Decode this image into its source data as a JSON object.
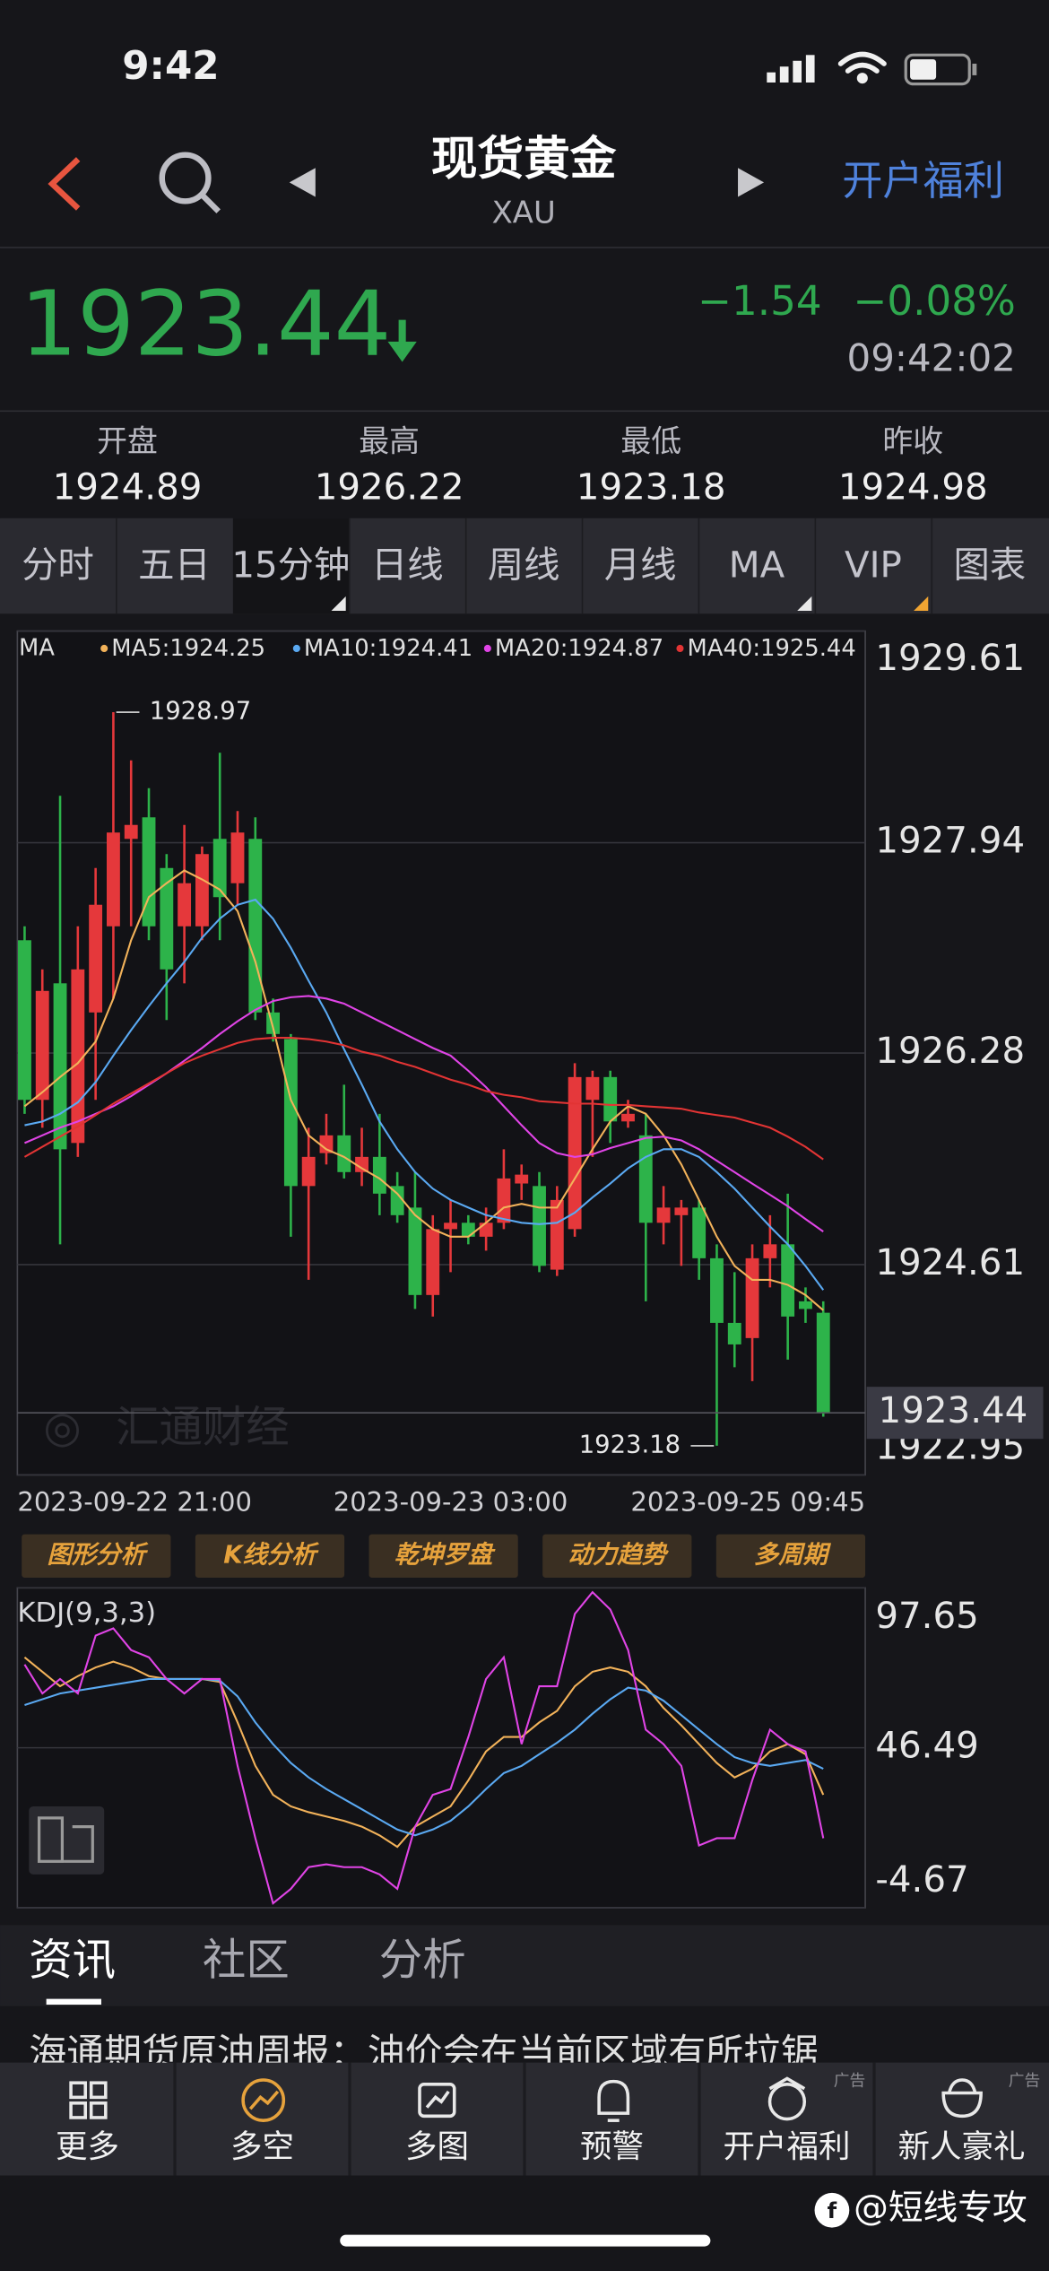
{
  "status_bar": {
    "time": "9:42"
  },
  "header": {
    "title": "现货黄金",
    "subtitle": "XAU",
    "action": "开户福利"
  },
  "quote": {
    "price": 1923.44,
    "change": "−1.54",
    "change_percent": "−0.08%",
    "time": "09:42:02"
  },
  "stats": [
    {
      "label": "开盘",
      "value": 1924.89
    },
    {
      "label": "最高",
      "value": 1926.22
    },
    {
      "label": "最低",
      "value": 1923.18
    },
    {
      "label": "昨收",
      "value": 1924.98
    }
  ],
  "tabs": [
    {
      "label": "分时"
    },
    {
      "label": "五日"
    },
    {
      "label": "15分钟",
      "active": true
    },
    {
      "label": "日线"
    },
    {
      "label": "周线"
    },
    {
      "label": "月线"
    },
    {
      "label": "MA"
    },
    {
      "label": "VIP"
    },
    {
      "label": "图表"
    }
  ],
  "chart": {
    "type": "candlestick",
    "indicator": "MA",
    "up_color": "#e5383b",
    "down_color": "#2db34a",
    "ylim": [
      1922.95,
      1929.61
    ],
    "yticks": [
      1929.61,
      1927.94,
      1926.28,
      1924.61,
      1922.95
    ],
    "categories": [
      "2023-09-22 21:00",
      null,
      null,
      null,
      null,
      null,
      null,
      null,
      null,
      null,
      null,
      null,
      null,
      null,
      null,
      null,
      null,
      null,
      null,
      null,
      null,
      null,
      null,
      null,
      "2023-09-23 03:00",
      null,
      null,
      null,
      null,
      null,
      null,
      null,
      null,
      null,
      null,
      null,
      null,
      null,
      null,
      null,
      null,
      null,
      null,
      null,
      null,
      "2023-09-25 09:45"
    ],
    "candles": [
      {
        "o": 1927.17,
        "h": 1927.28,
        "l": 1925.8,
        "c": 1925.91
      },
      {
        "o": 1925.91,
        "h": 1926.94,
        "l": 1925.69,
        "c": 1926.77
      },
      {
        "o": 1926.83,
        "h": 1928.31,
        "l": 1924.77,
        "c": 1925.52
      },
      {
        "o": 1925.57,
        "h": 1927.28,
        "l": 1925.46,
        "c": 1926.94
      },
      {
        "o": 1926.6,
        "h": 1927.74,
        "l": 1925.91,
        "c": 1927.45
      },
      {
        "o": 1927.28,
        "h": 1928.97,
        "l": 1926.71,
        "c": 1928.02
      },
      {
        "o": 1927.97,
        "h": 1928.59,
        "l": 1927.28,
        "c": 1928.08
      },
      {
        "o": 1928.14,
        "h": 1928.37,
        "l": 1927.17,
        "c": 1927.28
      },
      {
        "o": 1927.74,
        "h": 1927.85,
        "l": 1926.54,
        "c": 1926.94
      },
      {
        "o": 1927.28,
        "h": 1928.08,
        "l": 1926.83,
        "c": 1927.62
      },
      {
        "o": 1927.28,
        "h": 1927.91,
        "l": 1927.17,
        "c": 1927.85
      },
      {
        "o": 1927.97,
        "h": 1928.65,
        "l": 1927.17,
        "c": 1927.51
      },
      {
        "o": 1927.62,
        "h": 1928.19,
        "l": 1927.45,
        "c": 1928.02
      },
      {
        "o": 1927.97,
        "h": 1928.14,
        "l": 1926.54,
        "c": 1926.6
      },
      {
        "o": 1926.6,
        "h": 1926.71,
        "l": 1926.37,
        "c": 1926.43
      },
      {
        "o": 1926.39,
        "h": 1926.43,
        "l": 1924.83,
        "c": 1925.23
      },
      {
        "o": 1925.23,
        "h": 1925.69,
        "l": 1924.49,
        "c": 1925.46
      },
      {
        "o": 1925.49,
        "h": 1925.8,
        "l": 1925.4,
        "c": 1925.63
      },
      {
        "o": 1925.63,
        "h": 1926.03,
        "l": 1925.29,
        "c": 1925.34
      },
      {
        "o": 1925.34,
        "h": 1925.69,
        "l": 1925.23,
        "c": 1925.46
      },
      {
        "o": 1925.46,
        "h": 1925.8,
        "l": 1925.0,
        "c": 1925.17
      },
      {
        "o": 1925.23,
        "h": 1925.34,
        "l": 1924.94,
        "c": 1925.0
      },
      {
        "o": 1925.06,
        "h": 1925.34,
        "l": 1924.26,
        "c": 1924.37
      },
      {
        "o": 1924.37,
        "h": 1925.0,
        "l": 1924.2,
        "c": 1924.89
      },
      {
        "o": 1924.89,
        "h": 1925.12,
        "l": 1924.55,
        "c": 1924.94
      },
      {
        "o": 1924.94,
        "h": 1925.0,
        "l": 1924.77,
        "c": 1924.83
      },
      {
        "o": 1924.83,
        "h": 1925.06,
        "l": 1924.72,
        "c": 1924.94
      },
      {
        "o": 1924.94,
        "h": 1925.52,
        "l": 1924.89,
        "c": 1925.29
      },
      {
        "o": 1925.25,
        "h": 1925.4,
        "l": 1925.12,
        "c": 1925.32
      },
      {
        "o": 1925.23,
        "h": 1925.34,
        "l": 1924.55,
        "c": 1924.6
      },
      {
        "o": 1924.57,
        "h": 1925.23,
        "l": 1924.52,
        "c": 1925.12
      },
      {
        "o": 1924.89,
        "h": 1926.2,
        "l": 1924.83,
        "c": 1926.09
      },
      {
        "o": 1925.91,
        "h": 1926.14,
        "l": 1925.46,
        "c": 1926.09
      },
      {
        "o": 1926.09,
        "h": 1926.14,
        "l": 1925.57,
        "c": 1925.74
      },
      {
        "o": 1925.74,
        "h": 1925.91,
        "l": 1925.69,
        "c": 1925.8
      },
      {
        "o": 1925.63,
        "h": 1925.8,
        "l": 1924.32,
        "c": 1924.94
      },
      {
        "o": 1924.94,
        "h": 1925.23,
        "l": 1924.77,
        "c": 1925.06
      },
      {
        "o": 1925.0,
        "h": 1925.12,
        "l": 1924.6,
        "c": 1925.06
      },
      {
        "o": 1925.06,
        "h": 1925.12,
        "l": 1924.49,
        "c": 1924.66
      },
      {
        "o": 1924.66,
        "h": 1924.77,
        "l": 1923.18,
        "c": 1924.15
      },
      {
        "o": 1924.15,
        "h": 1924.55,
        "l": 1923.8,
        "c": 1923.98
      },
      {
        "o": 1924.03,
        "h": 1924.77,
        "l": 1923.69,
        "c": 1924.66
      },
      {
        "o": 1924.66,
        "h": 1925.0,
        "l": 1924.43,
        "c": 1924.77
      },
      {
        "o": 1924.77,
        "h": 1925.17,
        "l": 1923.86,
        "c": 1924.2
      },
      {
        "o": 1924.32,
        "h": 1924.43,
        "l": 1924.15,
        "c": 1924.26
      },
      {
        "o": 1924.23,
        "h": 1924.32,
        "l": 1923.41,
        "c": 1923.44
      }
    ],
    "ma": [
      {
        "name": "MA5:",
        "color": "#f2b25a",
        "values": [
          1925.86,
          1925.97,
          1926.09,
          1926.2,
          1926.37,
          1926.71,
          1927.17,
          1927.51,
          1927.62,
          1927.72,
          1927.65,
          1927.57,
          1927.4,
          1927.0,
          1926.48,
          1925.91,
          1925.63,
          1925.52,
          1925.46,
          1925.37,
          1925.29,
          1925.17,
          1925.0,
          1924.89,
          1924.83,
          1924.83,
          1924.94,
          1925.06,
          1925.09,
          1925.06,
          1925.06,
          1925.29,
          1925.52,
          1925.74,
          1925.86,
          1925.8,
          1925.63,
          1925.4,
          1925.12,
          1924.83,
          1924.6,
          1924.49,
          1924.49,
          1924.45,
          1924.37,
          1924.25
        ]
      },
      {
        "name": "MA10:",
        "color": "#5aa9f2",
        "values": [
          1925.71,
          1925.74,
          1925.8,
          1925.89,
          1926.05,
          1926.26,
          1926.46,
          1926.65,
          1926.83,
          1927.0,
          1927.19,
          1927.34,
          1927.45,
          1927.49,
          1927.34,
          1927.11,
          1926.85,
          1926.6,
          1926.31,
          1926.03,
          1925.74,
          1925.52,
          1925.34,
          1925.21,
          1925.12,
          1925.06,
          1925.0,
          1924.97,
          1924.94,
          1924.93,
          1924.94,
          1925.02,
          1925.14,
          1925.25,
          1925.37,
          1925.46,
          1925.52,
          1925.52,
          1925.46,
          1925.34,
          1925.21,
          1925.06,
          1924.91,
          1924.77,
          1924.6,
          1924.41
        ]
      },
      {
        "name": "MA20:",
        "color": "#e044e6",
        "values": [
          1925.57,
          1925.63,
          1925.69,
          1925.74,
          1925.8,
          1925.86,
          1925.94,
          1926.03,
          1926.12,
          1926.22,
          1926.32,
          1926.43,
          1926.53,
          1926.62,
          1926.69,
          1926.72,
          1926.73,
          1926.71,
          1926.67,
          1926.6,
          1926.53,
          1926.46,
          1926.39,
          1926.32,
          1926.26,
          1926.14,
          1926.01,
          1925.86,
          1925.71,
          1925.57,
          1925.49,
          1925.46,
          1925.48,
          1925.53,
          1925.57,
          1925.61,
          1925.62,
          1925.59,
          1925.52,
          1925.43,
          1925.34,
          1925.25,
          1925.16,
          1925.07,
          1924.97,
          1924.87
        ]
      },
      {
        "name": "MA40:",
        "color": "#e23434",
        "values": [
          1925.46,
          1925.54,
          1925.62,
          1925.7,
          1925.79,
          1925.88,
          1925.96,
          1926.04,
          1926.12,
          1926.2,
          1926.26,
          1926.31,
          1926.36,
          1926.39,
          1926.4,
          1926.4,
          1926.39,
          1926.37,
          1926.34,
          1926.29,
          1926.26,
          1926.21,
          1926.17,
          1926.12,
          1926.07,
          1926.03,
          1925.98,
          1925.95,
          1925.93,
          1925.9,
          1925.89,
          1925.88,
          1925.88,
          1925.87,
          1925.87,
          1925.86,
          1925.85,
          1925.84,
          1925.81,
          1925.79,
          1925.77,
          1925.73,
          1925.69,
          1925.62,
          1925.54,
          1925.44
        ]
      }
    ]
  },
  "tools": [
    "图形分析",
    "K线分析",
    "乾坤罗盘",
    "动力趋势",
    "多周期"
  ],
  "kdj": {
    "title": "KDJ(9,3,3)",
    "ylim": [
      -4.67,
      97.65
    ],
    "yticks": [
      97.65,
      46.49,
      -4.67
    ],
    "series": [
      {
        "color": "#f2b25a",
        "values": [
          75.43,
          70.8,
          66.17,
          69.41,
          72.19,
          74.04,
          72.19,
          69.41,
          68.48,
          68.48,
          68.48,
          67.56,
          54.59,
          40.7,
          31.44,
          27.74,
          25.89,
          24.5,
          23.11,
          21.26,
          18.48,
          14.78,
          21.26,
          24.5,
          27.74,
          36.07,
          45.33,
          49.96,
          49.96,
          54.59,
          58.3,
          66.17,
          70.8,
          72.19,
          70.8,
          66.17,
          59.22,
          53.66,
          47.65,
          41.63,
          37.0,
          39.78,
          45.33,
          47.65,
          44.41,
          31.44
        ]
      },
      {
        "color": "#5aa9f2",
        "values": [
          60.15,
          62.0,
          63.85,
          64.78,
          65.7,
          66.63,
          67.56,
          68.48,
          68.48,
          68.48,
          68.48,
          68.02,
          62.93,
          54.59,
          47.65,
          41.63,
          37.0,
          33.3,
          30.06,
          26.81,
          23.57,
          20.33,
          18.48,
          20.33,
          23.11,
          27.74,
          33.3,
          38.39,
          40.7,
          44.41,
          48.11,
          52.28,
          57.37,
          62.0,
          65.7,
          64.78,
          61.54,
          56.91,
          52.28,
          47.65,
          43.48,
          41.63,
          40.7,
          41.63,
          42.56,
          39.78
        ]
      },
      {
        "color": "#e044e6",
        "values": [
          73.11,
          63.85,
          68.48,
          63.85,
          82.37,
          84.69,
          77.74,
          75.43,
          68.48,
          63.85,
          68.48,
          68.48,
          40.7,
          17.55,
          -3.28,
          1.35,
          8.29,
          9.22,
          8.29,
          8.29,
          5.98,
          1.35,
          21.26,
          31.44,
          33.3,
          49.96,
          68.48,
          75.43,
          47.65,
          66.17,
          66.17,
          89.32,
          96.26,
          90.71,
          77.74,
          52.28,
          47.65,
          40.7,
          15.24,
          17.55,
          17.55,
          36.07,
          52.28,
          47.65,
          45.33,
          17.55
        ]
      }
    ]
  },
  "watermark": "汇通财经",
  "news": {
    "tabs": [
      "资讯",
      "社区",
      "分析"
    ],
    "headline": "海通期货原油周报：油价会在当前区域有所拉锯"
  },
  "bottom_nav": [
    {
      "label": "更多"
    },
    {
      "label": "多空"
    },
    {
      "label": "多图"
    },
    {
      "label": "预警"
    },
    {
      "label": "开户福利",
      "ad": "广告"
    },
    {
      "label": "新人豪礼",
      "ad": "广告"
    }
  ],
  "credit": "@短线专攻"
}
